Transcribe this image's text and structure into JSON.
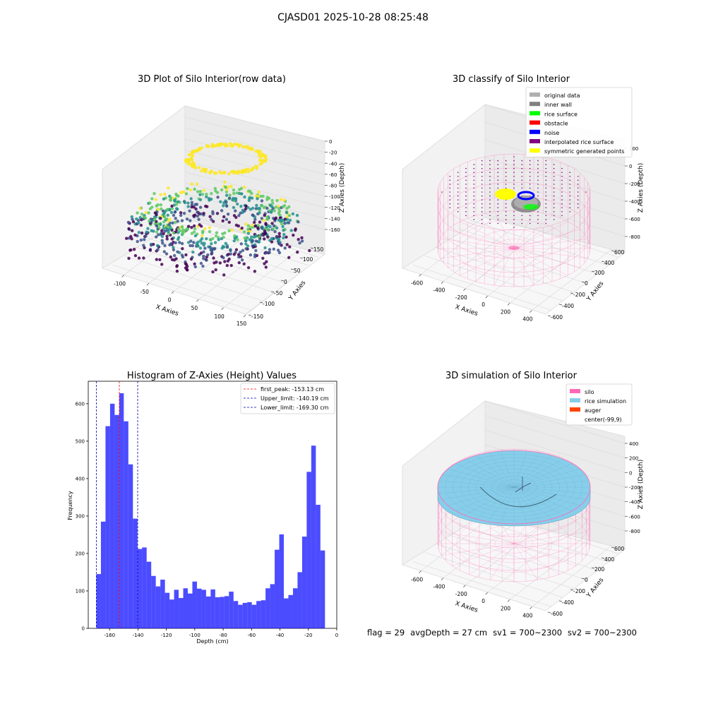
{
  "suptitle": "CJASD01 2025-10-28 08:25:48",
  "footer": {
    "flag": "flag = 29",
    "avg_depth": "avgDepth = 27 cm",
    "sv1": "sv1 = 700~2300",
    "sv2": "sv2 = 700~2300"
  },
  "chart_data": [
    {
      "type": "scatter3d",
      "title": "3D Plot of Silo Interior(row data)",
      "xlabel": "X Axies",
      "ylabel": "Y Axies",
      "zlabel": "Z Axies (Depth)",
      "x_ticks": [
        -100,
        -50,
        0,
        50,
        100,
        150
      ],
      "y_ticks": [
        -150,
        -100,
        -50,
        0,
        50,
        100,
        150
      ],
      "z_ticks": [
        0,
        -20,
        -40,
        -60,
        -80,
        -100,
        -120,
        -140,
        -160
      ],
      "colormap": [
        "#440154",
        "#3b528b",
        "#21908d",
        "#5dc963",
        "#fde725"
      ]
    },
    {
      "type": "scatter3d",
      "title": "3D classify of Silo Interior",
      "xlabel": "X Axies",
      "ylabel": "Y Axies",
      "zlabel": "Z Axies (Depth)",
      "x_ticks": [
        -600,
        -400,
        -200,
        0,
        200,
        400
      ],
      "y_ticks": [
        -600,
        -400,
        -200,
        0,
        200,
        400,
        600
      ],
      "z_ticks": [
        200,
        0,
        -200,
        -400,
        -600,
        -800
      ],
      "legend_position": "top-right",
      "legend": [
        {
          "label": "original data",
          "color": "#b0b0b0"
        },
        {
          "label": "inner wall",
          "color": "#808080"
        },
        {
          "label": "rice surface",
          "color": "#00ff00"
        },
        {
          "label": "obstacle",
          "color": "#ff0000"
        },
        {
          "label": "noise",
          "color": "#0000ff"
        },
        {
          "label": "interpolated rice surface",
          "color": "#800080"
        },
        {
          "label": "symmetric generated points",
          "color": "#ffff00"
        }
      ]
    },
    {
      "type": "bar",
      "title": "Histogram of Z-Axies (Height) Values",
      "xlabel": "Depth (cm)",
      "ylabel": "Frequency",
      "xlim": [
        -175,
        0
      ],
      "ylim": [
        0,
        660
      ],
      "x_ticks": [
        -160,
        -140,
        -120,
        -100,
        -80,
        -60,
        -40,
        -20,
        0
      ],
      "y_ticks": [
        0,
        100,
        200,
        300,
        400,
        500,
        600
      ],
      "bin_start": -169.3,
      "bin_width": 3.22,
      "bar_color": "#0000ff",
      "values": [
        145,
        285,
        540,
        600,
        570,
        628,
        553,
        438,
        293,
        212,
        216,
        178,
        140,
        112,
        130,
        95,
        77,
        103,
        81,
        107,
        93,
        125,
        106,
        103,
        85,
        104,
        83,
        84,
        86,
        98,
        73,
        63,
        68,
        70,
        63,
        73,
        75,
        107,
        118,
        210,
        251,
        80,
        89,
        107,
        150,
        245,
        418,
        488,
        330,
        208
      ],
      "legend_position": "top-right",
      "vlines": [
        {
          "label": "first_peak: -153.13 cm",
          "x": -153.13,
          "color": "#ff0000"
        },
        {
          "label": "Upper_limit: -140.19 cm",
          "x": -140.19,
          "color": "#0000bb"
        },
        {
          "label": "Lower_limit: -169.30 cm",
          "x": -169.3,
          "color": "#0000bb"
        }
      ]
    },
    {
      "type": "surface3d",
      "title": "3D simulation of Silo Interior",
      "xlabel": "X Axies",
      "ylabel": "Y Axies",
      "zlabel": "Z Axies (Depth)",
      "x_ticks": [
        -600,
        -400,
        -200,
        0,
        200,
        400
      ],
      "y_ticks": [
        -600,
        -400,
        -200,
        0,
        200,
        400,
        600
      ],
      "z_ticks": [
        400,
        200,
        0,
        -200,
        -400,
        -600,
        -800
      ],
      "legend_position": "top-right",
      "legend": [
        {
          "label": "silo",
          "color": "#ff69b4"
        },
        {
          "label": "rice simulation",
          "color": "#87ceeb"
        },
        {
          "label": "auger",
          "color": "#ff4500"
        },
        {
          "label": "center(-99,9)",
          "color": ""
        }
      ]
    }
  ]
}
